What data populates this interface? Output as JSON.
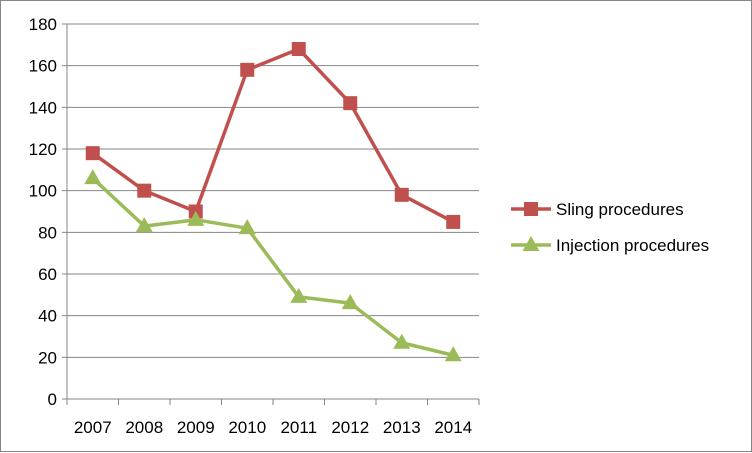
{
  "chart_data": {
    "type": "line",
    "title": "",
    "xlabel": "",
    "ylabel": "",
    "categories": [
      "2007",
      "2008",
      "2009",
      "2010",
      "2011",
      "2012",
      "2013",
      "2014"
    ],
    "ylim": [
      0,
      180
    ],
    "yticks": [
      "0",
      "20",
      "40",
      "60",
      "80",
      "100",
      "120",
      "140",
      "160",
      "180"
    ],
    "grid": "horizontal",
    "legend_position": "right",
    "series": [
      {
        "name": "Sling procedures",
        "values": [
          118,
          100,
          90,
          158,
          168,
          142,
          98,
          85
        ],
        "color": "#C0504D",
        "marker": "square"
      },
      {
        "name": "Injection procedures",
        "values": [
          106,
          83,
          86,
          82,
          49,
          46,
          27,
          21
        ],
        "color": "#9BBB59",
        "marker": "triangle"
      }
    ]
  }
}
